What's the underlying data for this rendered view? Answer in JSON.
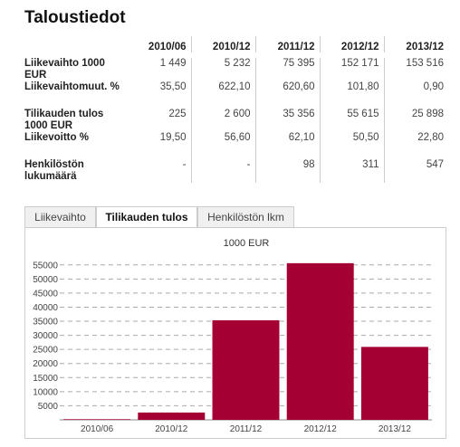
{
  "page": {
    "title": "Taloustiedot"
  },
  "table": {
    "headers": [
      "2010/06",
      "2010/12",
      "2011/12",
      "2012/12",
      "2013/12"
    ],
    "rows": [
      {
        "label_l1": "Liikevaihto 1000",
        "label_l2": "EUR",
        "values": [
          "1 449",
          "5 232",
          "75 395",
          "152 171",
          "153 516"
        ]
      },
      {
        "label_l1": "Liikevaihtomuut. %",
        "label_l2": "",
        "values": [
          "35,50",
          "622,10",
          "620,60",
          "101,80",
          "0,90"
        ]
      },
      {
        "label_l1": "Tilikauden tulos",
        "label_l2": "1000 EUR",
        "values": [
          "225",
          "2 600",
          "35 356",
          "55 615",
          "25 898"
        ]
      },
      {
        "label_l1": "Liikevoitto %",
        "label_l2": "",
        "values": [
          "19,50",
          "56,60",
          "62,10",
          "50,50",
          "22,80"
        ]
      },
      {
        "label_l1": "Henkilöstön",
        "label_l2": "lukumäärä",
        "values": [
          "-",
          "-",
          "98",
          "311",
          "547"
        ]
      }
    ]
  },
  "tabs": [
    {
      "label": "Liikevaihto",
      "active": false
    },
    {
      "label": "Tilikauden tulos",
      "active": true
    },
    {
      "label": "Henkilöstön lkm",
      "active": false
    }
  ],
  "colors": {
    "bar": "#a50034",
    "grid": "#aaaaaa"
  },
  "chart_data": {
    "type": "bar",
    "title": "1000 EUR",
    "categories": [
      "2010/06",
      "2010/12",
      "2011/12",
      "2012/12",
      "2013/12"
    ],
    "values": [
      225,
      2600,
      35356,
      55615,
      25898
    ],
    "ylim": [
      0,
      57500
    ],
    "yticks": [
      5000,
      10000,
      15000,
      20000,
      25000,
      30000,
      35000,
      40000,
      45000,
      50000,
      55000
    ],
    "grid": true,
    "legend": "none"
  }
}
